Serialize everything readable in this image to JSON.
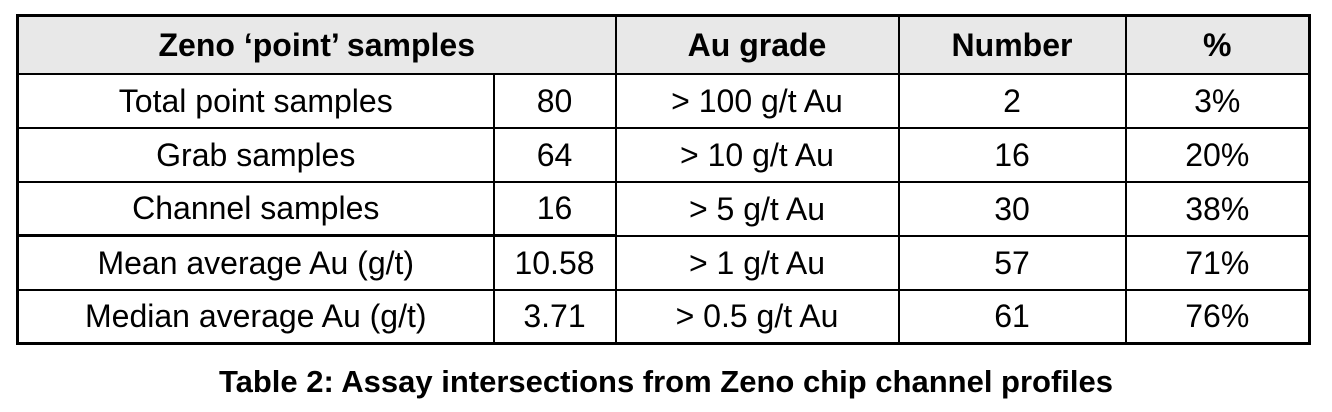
{
  "table": {
    "headers": {
      "samples": "Zeno ‘point’ samples",
      "grade": "Au grade",
      "number": "Number",
      "percent": "%"
    },
    "rows": [
      {
        "label": "Total point samples",
        "value": "80",
        "grade": "> 100 g/t Au",
        "number": "2",
        "percent": "3%"
      },
      {
        "label": "Grab samples",
        "value": "64",
        "grade": "> 10 g/t Au",
        "number": "16",
        "percent": "20%"
      },
      {
        "label": "Channel samples",
        "value": "16",
        "grade": "> 5 g/t Au",
        "number": "30",
        "percent": "38%"
      },
      {
        "label": "Mean average Au (g/t)",
        "value": "10.58",
        "grade": "> 1 g/t Au",
        "number": "57",
        "percent": "71%"
      },
      {
        "label": "Median average Au (g/t)",
        "value": "3.71",
        "grade": "> 0.5 g/t Au",
        "number": "61",
        "percent": "76%"
      }
    ]
  },
  "caption": "Table 2: Assay intersections from Zeno chip channel profiles",
  "colors": {
    "header_background": "#e8e8e8",
    "border": "#000000"
  }
}
